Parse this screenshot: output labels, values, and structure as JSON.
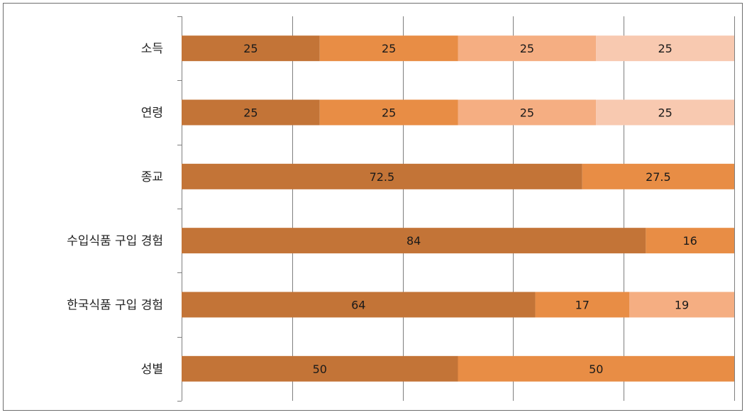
{
  "chart_data": {
    "type": "bar",
    "orientation": "horizontal",
    "stacking": "percent",
    "xlim": [
      0,
      100
    ],
    "grid": true,
    "legend": "none",
    "categories": [
      "소득",
      "연령",
      "종교",
      "수입식품 구입 경험",
      "한국식품 구입 경험",
      "성별"
    ],
    "segments": [
      [
        25,
        25,
        25,
        25
      ],
      [
        25,
        25,
        25,
        25
      ],
      [
        72.5,
        27.5
      ],
      [
        84,
        16
      ],
      [
        64,
        17,
        19
      ],
      [
        50,
        50
      ]
    ],
    "colors": [
      "#c37437",
      "#e88d45",
      "#f5ae82",
      "#f8c9b0"
    ],
    "gridline_color": "#7f7f7f"
  }
}
